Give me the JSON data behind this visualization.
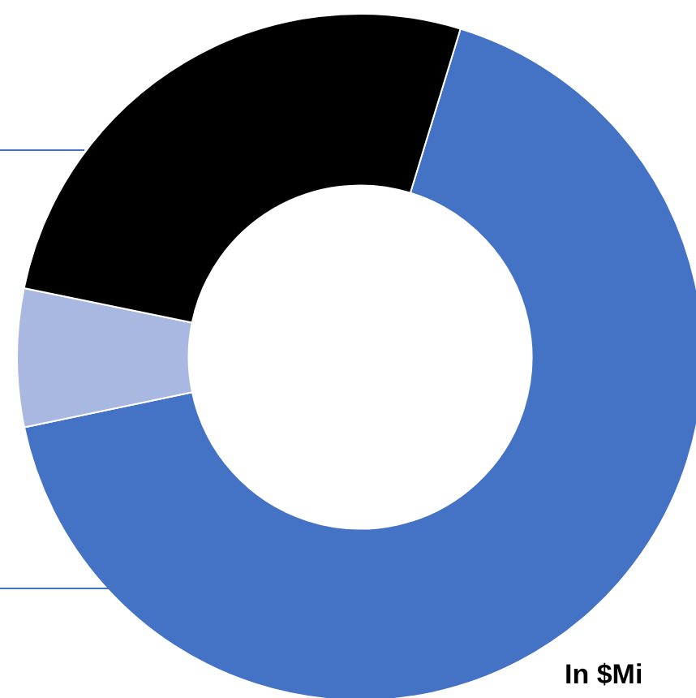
{
  "chart_data": {
    "type": "donut",
    "categories": [
      null,
      null,
      null
    ],
    "values": [
      67,
      6.5,
      26.5
    ],
    "colors": [
      "#4472c4",
      "#a9b8e0",
      "#000000"
    ],
    "legend": false,
    "annotations": [
      "In $Mi"
    ]
  }
}
